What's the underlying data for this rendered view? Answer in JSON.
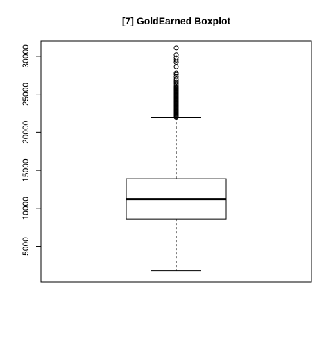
{
  "chart_data": {
    "type": "boxplot",
    "title": "[7] GoldEarned Boxplot",
    "xlabel": "",
    "ylabel": "",
    "ylim": [
      300,
      32000
    ],
    "yticks": [
      5000,
      10000,
      15000,
      20000,
      25000,
      30000
    ],
    "grid": false,
    "box": {
      "whisker_low": 1800,
      "q1": 8600,
      "median": 11200,
      "q3": 13900,
      "whisker_high": 21900
    },
    "outliers": [
      22000,
      22100,
      22200,
      22300,
      22400,
      22500,
      22600,
      22700,
      22800,
      22900,
      23000,
      23100,
      23200,
      23300,
      23400,
      23500,
      23600,
      23700,
      23800,
      23900,
      24000,
      24100,
      24200,
      24300,
      24400,
      24500,
      24600,
      24700,
      24800,
      24900,
      25000,
      25100,
      25200,
      25300,
      25400,
      25500,
      25600,
      25700,
      25800,
      25900,
      26000,
      26200,
      26400,
      26600,
      26800,
      27000,
      27300,
      27600,
      27800,
      28600,
      29200,
      29500,
      29800,
      30200,
      31100
    ],
    "colors": {
      "stroke": "#000000",
      "background": "#ffffff"
    }
  }
}
